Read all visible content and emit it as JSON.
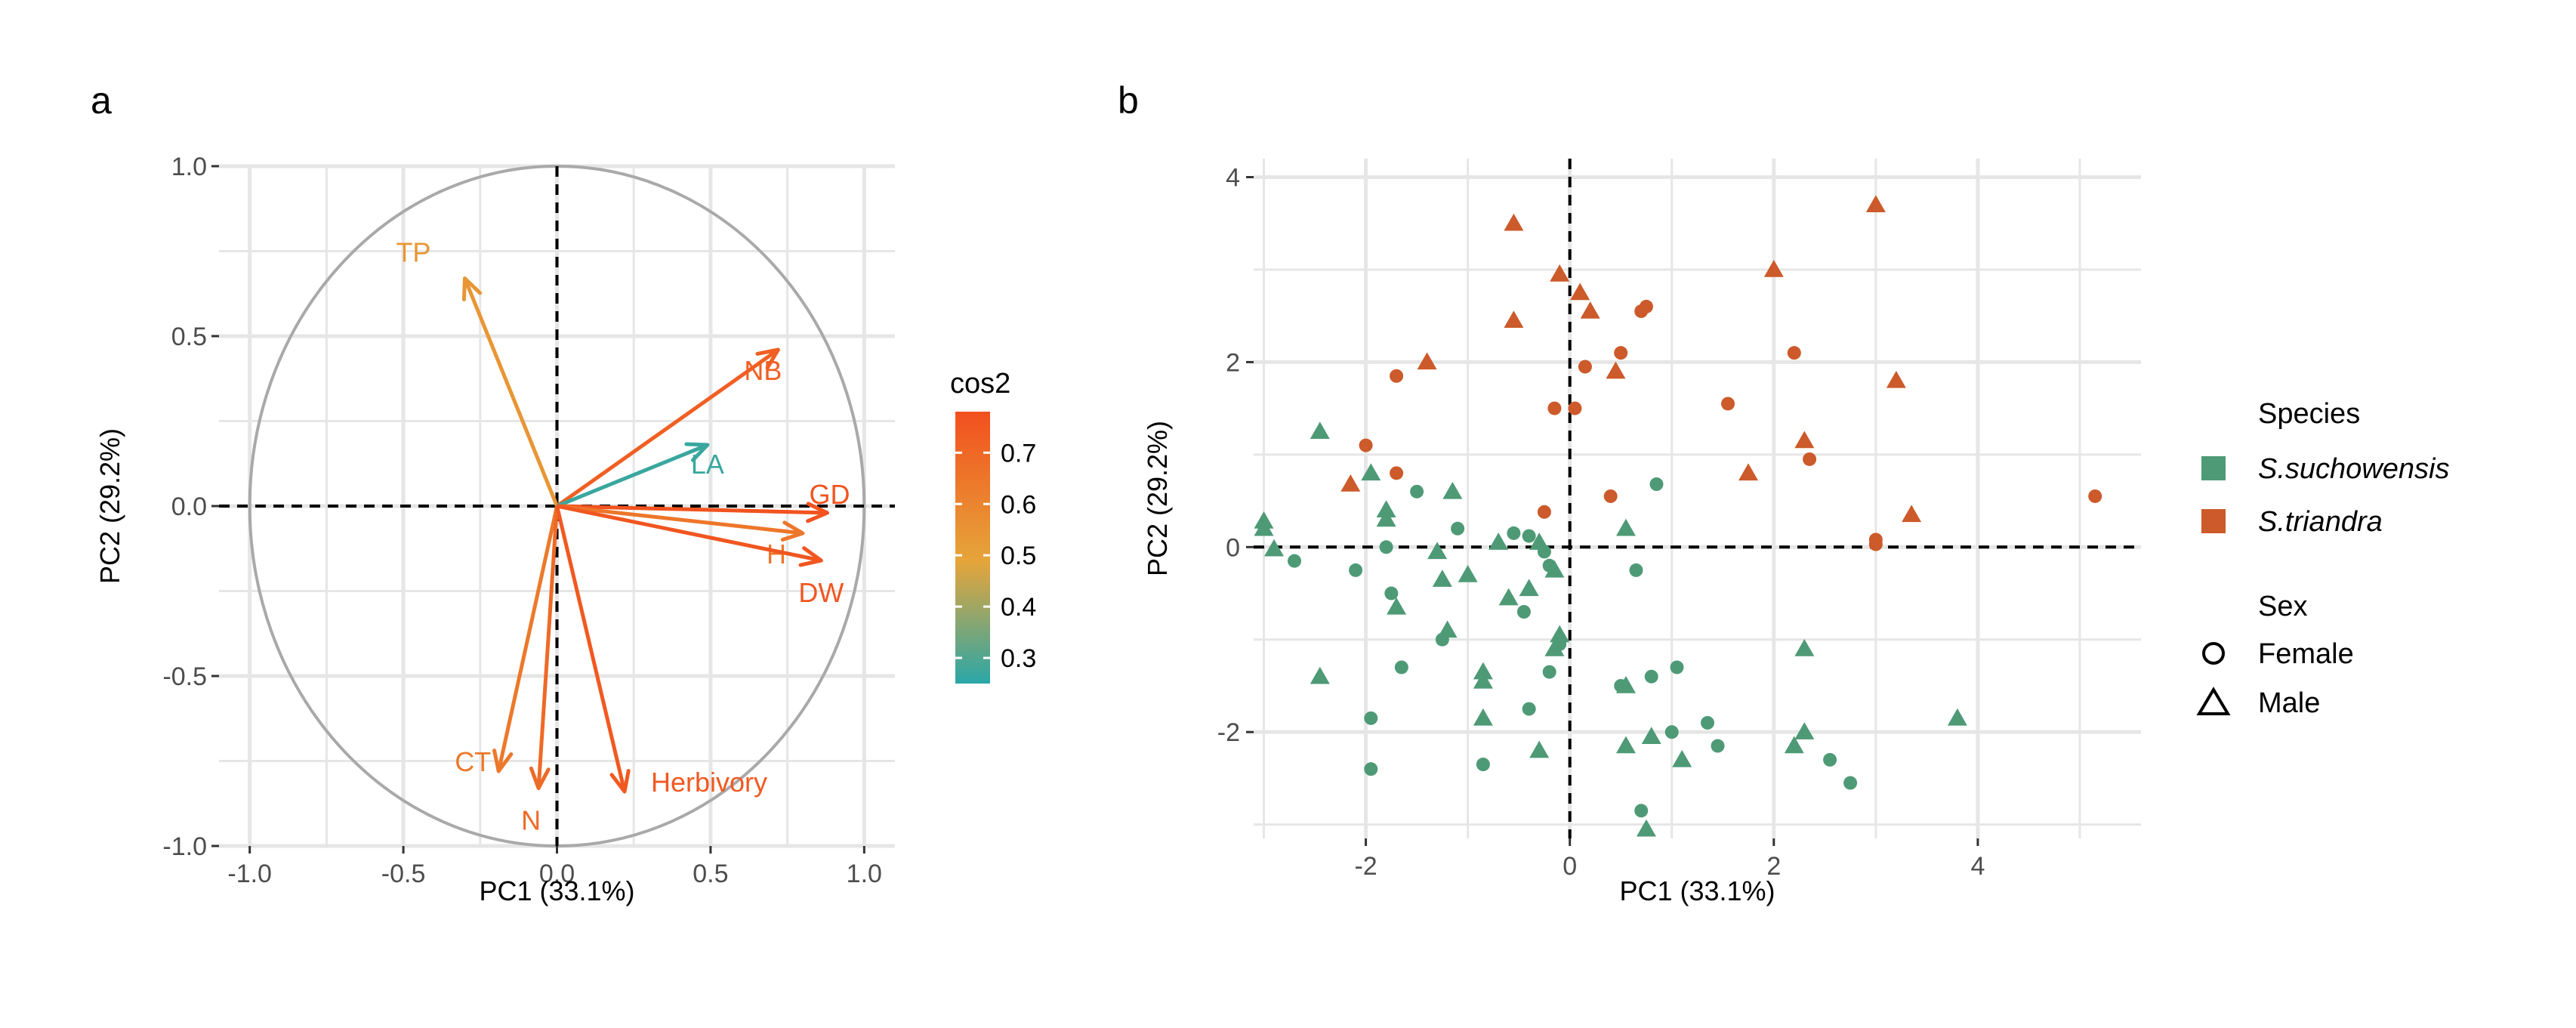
{
  "chart_data": [
    {
      "panel": "a",
      "type": "scatter",
      "subtype": "pca-variable-correlation-circle",
      "xlabel": "PC1 (33.1%)",
      "ylabel": "PC2 (29.2%)",
      "xlim": [
        -1.1,
        1.1
      ],
      "ylim": [
        -1.0,
        1.0
      ],
      "xticks": [
        -1.0,
        -0.5,
        0.0,
        0.5,
        1.0
      ],
      "xtick_labels": [
        "-1.0",
        "-0.5",
        "0.0",
        "0.5",
        "1.0"
      ],
      "yticks": [
        -1.0,
        -0.5,
        0.0,
        0.5,
        1.0
      ],
      "ytick_labels": [
        "-1.0",
        "-0.5",
        "0.0",
        "0.5",
        "1.0"
      ],
      "grid": true,
      "legend": {
        "title": "cos2",
        "type": "gradient",
        "range": [
          0.25,
          0.78
        ],
        "ticks": [
          0.3,
          0.4,
          0.5,
          0.6,
          0.7
        ],
        "tick_labels": [
          "0.3",
          "0.4",
          "0.5",
          "0.6",
          "0.7"
        ],
        "colors": [
          "#2aa7a8",
          "#e6a53a",
          "#f2501e"
        ],
        "placement": "right"
      },
      "vectors": [
        {
          "label": "TP",
          "x": -0.3,
          "y": 0.67,
          "cos2": 0.54
        },
        {
          "label": "NB",
          "x": 0.72,
          "y": 0.46,
          "cos2": 0.73
        },
        {
          "label": "LA",
          "x": 0.49,
          "y": 0.18,
          "cos2": 0.27
        },
        {
          "label": "GD",
          "x": 0.88,
          "y": -0.02,
          "cos2": 0.77
        },
        {
          "label": "H",
          "x": 0.8,
          "y": -0.08,
          "cos2": 0.65
        },
        {
          "label": "DW",
          "x": 0.86,
          "y": -0.16,
          "cos2": 0.76
        },
        {
          "label": "CT",
          "x": -0.19,
          "y": -0.78,
          "cos2": 0.64
        },
        {
          "label": "N",
          "x": -0.06,
          "y": -0.83,
          "cos2": 0.69
        },
        {
          "label": "Herbivory",
          "x": 0.22,
          "y": -0.84,
          "cos2": 0.75
        }
      ]
    },
    {
      "panel": "b",
      "type": "scatter",
      "subtype": "pca-individuals",
      "xlabel": "PC1 (33.1%)",
      "ylabel": "PC2 (29.2%)",
      "xlim": [
        -3.1,
        5.6
      ],
      "ylim": [
        -3.15,
        4.2
      ],
      "xticks": [
        -2,
        0,
        2,
        4
      ],
      "xtick_labels": [
        "-2",
        "0",
        "2",
        "4"
      ],
      "yticks": [
        -2,
        0,
        2,
        4
      ],
      "ytick_labels": [
        "-2",
        "0",
        "2",
        "4"
      ],
      "grid": true,
      "legend": {
        "placement": "right",
        "species_title": "Species",
        "species": [
          {
            "name": "S.suchowensis",
            "color": "#4e9a76"
          },
          {
            "name": "S.triandra",
            "color": "#cc5a2a"
          }
        ],
        "sex_title": "Sex",
        "sex": [
          {
            "name": "Female",
            "shape": "circle"
          },
          {
            "name": "Male",
            "shape": "triangle"
          }
        ]
      },
      "points": [
        {
          "x": -0.55,
          "y": 3.5,
          "species": "S.triandra",
          "sex": "Male"
        },
        {
          "x": 3.0,
          "y": 3.7,
          "species": "S.triandra",
          "sex": "Male"
        },
        {
          "x": -0.1,
          "y": 2.95,
          "species": "S.triandra",
          "sex": "Male"
        },
        {
          "x": 0.1,
          "y": 2.75,
          "species": "S.triandra",
          "sex": "Male"
        },
        {
          "x": 0.2,
          "y": 2.55,
          "species": "S.triandra",
          "sex": "Male"
        },
        {
          "x": 2.0,
          "y": 3.0,
          "species": "S.triandra",
          "sex": "Male"
        },
        {
          "x": 0.75,
          "y": 2.6,
          "species": "S.triandra",
          "sex": "Female"
        },
        {
          "x": 0.7,
          "y": 2.55,
          "species": "S.triandra",
          "sex": "Female"
        },
        {
          "x": -0.55,
          "y": 2.45,
          "species": "S.triandra",
          "sex": "Male"
        },
        {
          "x": 0.5,
          "y": 2.1,
          "species": "S.triandra",
          "sex": "Female"
        },
        {
          "x": 2.2,
          "y": 2.1,
          "species": "S.triandra",
          "sex": "Female"
        },
        {
          "x": 0.15,
          "y": 1.95,
          "species": "S.triandra",
          "sex": "Female"
        },
        {
          "x": -1.4,
          "y": 2.0,
          "species": "S.triandra",
          "sex": "Male"
        },
        {
          "x": -1.7,
          "y": 1.85,
          "species": "S.triandra",
          "sex": "Female"
        },
        {
          "x": 0.45,
          "y": 1.9,
          "species": "S.triandra",
          "sex": "Male"
        },
        {
          "x": 3.2,
          "y": 1.8,
          "species": "S.triandra",
          "sex": "Male"
        },
        {
          "x": 1.55,
          "y": 1.55,
          "species": "S.triandra",
          "sex": "Female"
        },
        {
          "x": -0.15,
          "y": 1.5,
          "species": "S.triandra",
          "sex": "Female"
        },
        {
          "x": 0.05,
          "y": 1.5,
          "species": "S.triandra",
          "sex": "Female"
        },
        {
          "x": 2.3,
          "y": 1.15,
          "species": "S.triandra",
          "sex": "Male"
        },
        {
          "x": -2.0,
          "y": 1.1,
          "species": "S.triandra",
          "sex": "Female"
        },
        {
          "x": 2.35,
          "y": 0.95,
          "species": "S.triandra",
          "sex": "Female"
        },
        {
          "x": 1.75,
          "y": 0.8,
          "species": "S.triandra",
          "sex": "Male"
        },
        {
          "x": -1.7,
          "y": 0.8,
          "species": "S.triandra",
          "sex": "Female"
        },
        {
          "x": -2.15,
          "y": 0.68,
          "species": "S.triandra",
          "sex": "Male"
        },
        {
          "x": 0.4,
          "y": 0.55,
          "species": "S.triandra",
          "sex": "Female"
        },
        {
          "x": 5.15,
          "y": 0.55,
          "species": "S.triandra",
          "sex": "Female"
        },
        {
          "x": -0.25,
          "y": 0.38,
          "species": "S.triandra",
          "sex": "Female"
        },
        {
          "x": 3.35,
          "y": 0.35,
          "species": "S.triandra",
          "sex": "Male"
        },
        {
          "x": 3.0,
          "y": 0.08,
          "species": "S.triandra",
          "sex": "Female"
        },
        {
          "x": 3.0,
          "y": 0.03,
          "species": "S.triandra",
          "sex": "Female"
        },
        {
          "x": -2.45,
          "y": 1.25,
          "species": "S.suchowensis",
          "sex": "Male"
        },
        {
          "x": -1.95,
          "y": 0.8,
          "species": "S.suchowensis",
          "sex": "Male"
        },
        {
          "x": -1.5,
          "y": 0.6,
          "species": "S.suchowensis",
          "sex": "Female"
        },
        {
          "x": -1.15,
          "y": 0.6,
          "species": "S.suchowensis",
          "sex": "Male"
        },
        {
          "x": -1.8,
          "y": 0.4,
          "species": "S.suchowensis",
          "sex": "Male"
        },
        {
          "x": -1.8,
          "y": 0.3,
          "species": "S.suchowensis",
          "sex": "Male"
        },
        {
          "x": -3.0,
          "y": 0.28,
          "species": "S.suchowensis",
          "sex": "Male"
        },
        {
          "x": -3.0,
          "y": 0.2,
          "species": "S.suchowensis",
          "sex": "Male"
        },
        {
          "x": -1.1,
          "y": 0.2,
          "species": "S.suchowensis",
          "sex": "Female"
        },
        {
          "x": 0.85,
          "y": 0.68,
          "species": "S.suchowensis",
          "sex": "Female"
        },
        {
          "x": 0.55,
          "y": 0.2,
          "species": "S.suchowensis",
          "sex": "Male"
        },
        {
          "x": -0.55,
          "y": 0.15,
          "species": "S.suchowensis",
          "sex": "Female"
        },
        {
          "x": -0.4,
          "y": 0.12,
          "species": "S.suchowensis",
          "sex": "Female"
        },
        {
          "x": -0.3,
          "y": 0.05,
          "species": "S.suchowensis",
          "sex": "Male"
        },
        {
          "x": -0.7,
          "y": 0.05,
          "species": "S.suchowensis",
          "sex": "Male"
        },
        {
          "x": -1.8,
          "y": 0.0,
          "species": "S.suchowensis",
          "sex": "Female"
        },
        {
          "x": -2.9,
          "y": -0.02,
          "species": "S.suchowensis",
          "sex": "Male"
        },
        {
          "x": -1.3,
          "y": -0.05,
          "species": "S.suchowensis",
          "sex": "Male"
        },
        {
          "x": -0.25,
          "y": -0.05,
          "species": "S.suchowensis",
          "sex": "Female"
        },
        {
          "x": -2.7,
          "y": -0.15,
          "species": "S.suchowensis",
          "sex": "Female"
        },
        {
          "x": -0.2,
          "y": -0.2,
          "species": "S.suchowensis",
          "sex": "Female"
        },
        {
          "x": -0.15,
          "y": -0.25,
          "species": "S.suchowensis",
          "sex": "Male"
        },
        {
          "x": 0.65,
          "y": -0.25,
          "species": "S.suchowensis",
          "sex": "Female"
        },
        {
          "x": -2.1,
          "y": -0.25,
          "species": "S.suchowensis",
          "sex": "Female"
        },
        {
          "x": -1.0,
          "y": -0.3,
          "species": "S.suchowensis",
          "sex": "Male"
        },
        {
          "x": -1.25,
          "y": -0.35,
          "species": "S.suchowensis",
          "sex": "Male"
        },
        {
          "x": -0.4,
          "y": -0.45,
          "species": "S.suchowensis",
          "sex": "Male"
        },
        {
          "x": -1.75,
          "y": -0.5,
          "species": "S.suchowensis",
          "sex": "Female"
        },
        {
          "x": -0.6,
          "y": -0.55,
          "species": "S.suchowensis",
          "sex": "Male"
        },
        {
          "x": -1.7,
          "y": -0.65,
          "species": "S.suchowensis",
          "sex": "Male"
        },
        {
          "x": -0.45,
          "y": -0.7,
          "species": "S.suchowensis",
          "sex": "Female"
        },
        {
          "x": -1.2,
          "y": -0.9,
          "species": "S.suchowensis",
          "sex": "Male"
        },
        {
          "x": -1.25,
          "y": -1.0,
          "species": "S.suchowensis",
          "sex": "Female"
        },
        {
          "x": -0.1,
          "y": -0.95,
          "species": "S.suchowensis",
          "sex": "Male"
        },
        {
          "x": -0.1,
          "y": -1.05,
          "species": "S.suchowensis",
          "sex": "Female"
        },
        {
          "x": -0.15,
          "y": -1.1,
          "species": "S.suchowensis",
          "sex": "Male"
        },
        {
          "x": -1.65,
          "y": -1.3,
          "species": "S.suchowensis",
          "sex": "Female"
        },
        {
          "x": -0.85,
          "y": -1.35,
          "species": "S.suchowensis",
          "sex": "Male"
        },
        {
          "x": -0.2,
          "y": -1.35,
          "species": "S.suchowensis",
          "sex": "Female"
        },
        {
          "x": 1.05,
          "y": -1.3,
          "species": "S.suchowensis",
          "sex": "Female"
        },
        {
          "x": 0.8,
          "y": -1.4,
          "species": "S.suchowensis",
          "sex": "Female"
        },
        {
          "x": -2.45,
          "y": -1.4,
          "species": "S.suchowensis",
          "sex": "Male"
        },
        {
          "x": -0.85,
          "y": -1.45,
          "species": "S.suchowensis",
          "sex": "Male"
        },
        {
          "x": 0.5,
          "y": -1.5,
          "species": "S.suchowensis",
          "sex": "Female"
        },
        {
          "x": 0.55,
          "y": -1.5,
          "species": "S.suchowensis",
          "sex": "Male"
        },
        {
          "x": 2.3,
          "y": -1.1,
          "species": "S.suchowensis",
          "sex": "Male"
        },
        {
          "x": -0.4,
          "y": -1.75,
          "species": "S.suchowensis",
          "sex": "Female"
        },
        {
          "x": -1.95,
          "y": -1.85,
          "species": "S.suchowensis",
          "sex": "Female"
        },
        {
          "x": -0.85,
          "y": -1.85,
          "species": "S.suchowensis",
          "sex": "Male"
        },
        {
          "x": 3.8,
          "y": -1.85,
          "species": "S.suchowensis",
          "sex": "Male"
        },
        {
          "x": 1.35,
          "y": -1.9,
          "species": "S.suchowensis",
          "sex": "Female"
        },
        {
          "x": 1.0,
          "y": -2.0,
          "species": "S.suchowensis",
          "sex": "Female"
        },
        {
          "x": 0.8,
          "y": -2.05,
          "species": "S.suchowensis",
          "sex": "Male"
        },
        {
          "x": 2.3,
          "y": -2.0,
          "species": "S.suchowensis",
          "sex": "Male"
        },
        {
          "x": 1.45,
          "y": -2.15,
          "species": "S.suchowensis",
          "sex": "Female"
        },
        {
          "x": 2.2,
          "y": -2.15,
          "species": "S.suchowensis",
          "sex": "Male"
        },
        {
          "x": 0.55,
          "y": -2.15,
          "species": "S.suchowensis",
          "sex": "Male"
        },
        {
          "x": -0.3,
          "y": -2.2,
          "species": "S.suchowensis",
          "sex": "Male"
        },
        {
          "x": 1.1,
          "y": -2.3,
          "species": "S.suchowensis",
          "sex": "Male"
        },
        {
          "x": -0.85,
          "y": -2.35,
          "species": "S.suchowensis",
          "sex": "Female"
        },
        {
          "x": 2.55,
          "y": -2.3,
          "species": "S.suchowensis",
          "sex": "Female"
        },
        {
          "x": -1.95,
          "y": -2.4,
          "species": "S.suchowensis",
          "sex": "Female"
        },
        {
          "x": 2.75,
          "y": -2.55,
          "species": "S.suchowensis",
          "sex": "Female"
        },
        {
          "x": 0.7,
          "y": -2.85,
          "species": "S.suchowensis",
          "sex": "Female"
        },
        {
          "x": 0.75,
          "y": -3.05,
          "species": "S.suchowensis",
          "sex": "Male"
        }
      ]
    }
  ]
}
